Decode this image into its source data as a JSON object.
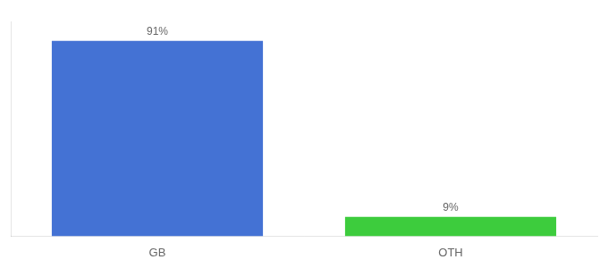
{
  "chart_data": {
    "type": "bar",
    "categories": [
      "GB",
      "OTH"
    ],
    "values": [
      91,
      9
    ],
    "value_labels": [
      "91%",
      "9%"
    ],
    "data_labels": true,
    "colors": [
      "#4472d4",
      "#3dcc3d"
    ],
    "ylim": [
      0,
      100
    ],
    "grid": false,
    "tick_labels": "x"
  }
}
